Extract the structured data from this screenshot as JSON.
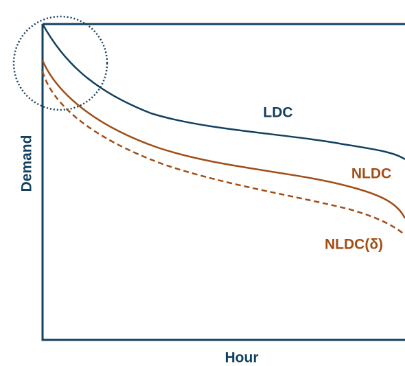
{
  "axes": {
    "y_label": "Demand",
    "x_label": "Hour"
  },
  "curves": [
    {
      "label": "LDC"
    },
    {
      "label": "NLDC"
    },
    {
      "label": "NLDC(δ)"
    }
  ]
}
